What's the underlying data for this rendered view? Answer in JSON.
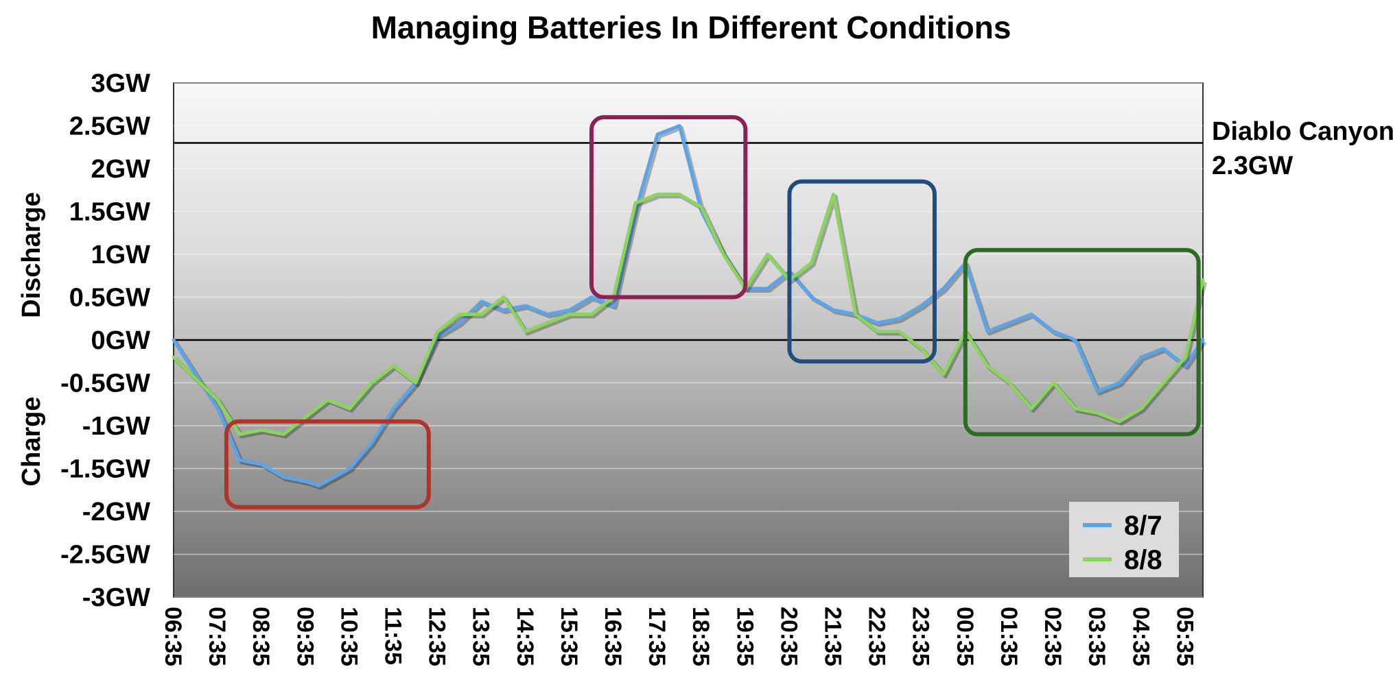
{
  "chart_data": {
    "type": "line",
    "title": "Managing Batteries In Different Conditions",
    "ylabel_upper": "Discharge",
    "ylabel_lower": "Charge",
    "ylim": [
      -3,
      3
    ],
    "yunit": "GW",
    "ytick_values": [
      3,
      2.5,
      2,
      1.5,
      1,
      0.5,
      0,
      -0.5,
      -1,
      -1.5,
      -2,
      -2.5,
      -3
    ],
    "ytick_labels": [
      "3GW",
      "2.5GW",
      "2GW",
      "1.5GW",
      "1GW",
      "0.5GW",
      "0GW",
      "-0.5GW",
      "-1GW",
      "-1.5GW",
      "-2GW",
      "-2.5GW",
      "-3GW"
    ],
    "x_hours": [
      0,
      1,
      2,
      3,
      4,
      5,
      6,
      7,
      8,
      9,
      10,
      11,
      12,
      13,
      14,
      15,
      16,
      17,
      18,
      19,
      20,
      21,
      22,
      23,
      24
    ],
    "x_tick_positions": [
      0,
      1,
      2,
      3,
      4,
      5,
      6,
      7,
      8,
      9,
      10,
      11,
      12,
      13,
      14,
      15,
      16,
      17,
      18,
      19,
      20,
      21,
      22,
      23
    ],
    "x_tick_labels": [
      "06:35",
      "07:35",
      "08:35",
      "09:35",
      "10:35",
      "11:35",
      "12:35",
      "13:35",
      "14:35",
      "15:35",
      "16:35",
      "17:35",
      "18:35",
      "19:35",
      "20:35",
      "21:35",
      "22:35",
      "23:35",
      "00:35",
      "01:35",
      "02:35",
      "03:35",
      "04:35",
      "05:35"
    ],
    "x_range_hours": [
      0,
      23.4
    ],
    "reference_lines": [
      {
        "value": 2.3,
        "name": "Diablo Canyon",
        "label": "2.3GW",
        "color": "#000000"
      },
      {
        "value": 0,
        "name": "zero",
        "label": "",
        "color": "#000000"
      }
    ],
    "series": [
      {
        "name": "8/7",
        "color": "#5aa5ea",
        "x": [
          0,
          1,
          1.5,
          2,
          2.5,
          3,
          3.3,
          4,
          4.5,
          5,
          5.5,
          6,
          6.5,
          7,
          7.5,
          8,
          8.5,
          9,
          9.5,
          10,
          10.5,
          11,
          11.5,
          12,
          12.5,
          13,
          13.5,
          14,
          14.5,
          15,
          15.5,
          16,
          16.5,
          17,
          17.5,
          18,
          18.5,
          19,
          19.5,
          20,
          20.5,
          21,
          21.5,
          22,
          22.5,
          23,
          23.4
        ],
        "values": [
          0,
          -0.8,
          -1.4,
          -1.45,
          -1.6,
          -1.65,
          -1.7,
          -1.5,
          -1.2,
          -0.8,
          -0.5,
          0.05,
          0.2,
          0.45,
          0.35,
          0.4,
          0.3,
          0.35,
          0.5,
          0.4,
          1.5,
          2.4,
          2.5,
          1.5,
          1.0,
          0.6,
          0.6,
          0.8,
          0.5,
          0.35,
          0.3,
          0.2,
          0.25,
          0.4,
          0.6,
          0.9,
          0.1,
          0.2,
          0.3,
          0.1,
          0.0,
          -0.6,
          -0.5,
          -0.2,
          -0.1,
          -0.3,
          0.0
        ]
      },
      {
        "name": "8/8",
        "color": "#8ad55c",
        "x": [
          0,
          1,
          1.5,
          2,
          2.5,
          3,
          3.5,
          4,
          4.5,
          5,
          5.5,
          6,
          6.5,
          7,
          7.5,
          8,
          8.5,
          9,
          9.5,
          10,
          10.5,
          11,
          11.5,
          12,
          12.5,
          13,
          13.5,
          14,
          14.5,
          15,
          15.5,
          16,
          16.5,
          17,
          17.5,
          18,
          18.5,
          19,
          19.5,
          20,
          20.5,
          21,
          21.5,
          22,
          22.5,
          23,
          23.4
        ],
        "values": [
          -0.2,
          -0.7,
          -1.1,
          -1.05,
          -1.1,
          -0.9,
          -0.7,
          -0.8,
          -0.5,
          -0.3,
          -0.5,
          0.1,
          0.3,
          0.3,
          0.5,
          0.1,
          0.2,
          0.3,
          0.3,
          0.5,
          1.6,
          1.7,
          1.7,
          1.55,
          1.0,
          0.6,
          1.0,
          0.7,
          0.9,
          1.7,
          0.3,
          0.1,
          0.1,
          -0.1,
          -0.4,
          0.1,
          -0.3,
          -0.5,
          -0.8,
          -0.5,
          -0.8,
          -0.85,
          -0.95,
          -0.8,
          -0.5,
          -0.2,
          0.7
        ]
      }
    ],
    "highlight_boxes": [
      {
        "x_start": 1.2,
        "x_end": 5.8,
        "y_start": -0.95,
        "y_end": -1.95,
        "color": "#b03327"
      },
      {
        "x_start": 9.5,
        "x_end": 13.0,
        "y_start": 2.6,
        "y_end": 0.5,
        "color": "#8c2155"
      },
      {
        "x_start": 14.0,
        "x_end": 17.3,
        "y_start": 1.85,
        "y_end": -0.25,
        "color": "#224c7d"
      },
      {
        "x_start": 18.0,
        "x_end": 23.3,
        "y_start": 1.05,
        "y_end": -1.1,
        "color": "#2c6b22"
      }
    ],
    "legend": {
      "position": "bottom-right",
      "entries": [
        "8/7",
        "8/8"
      ]
    }
  }
}
